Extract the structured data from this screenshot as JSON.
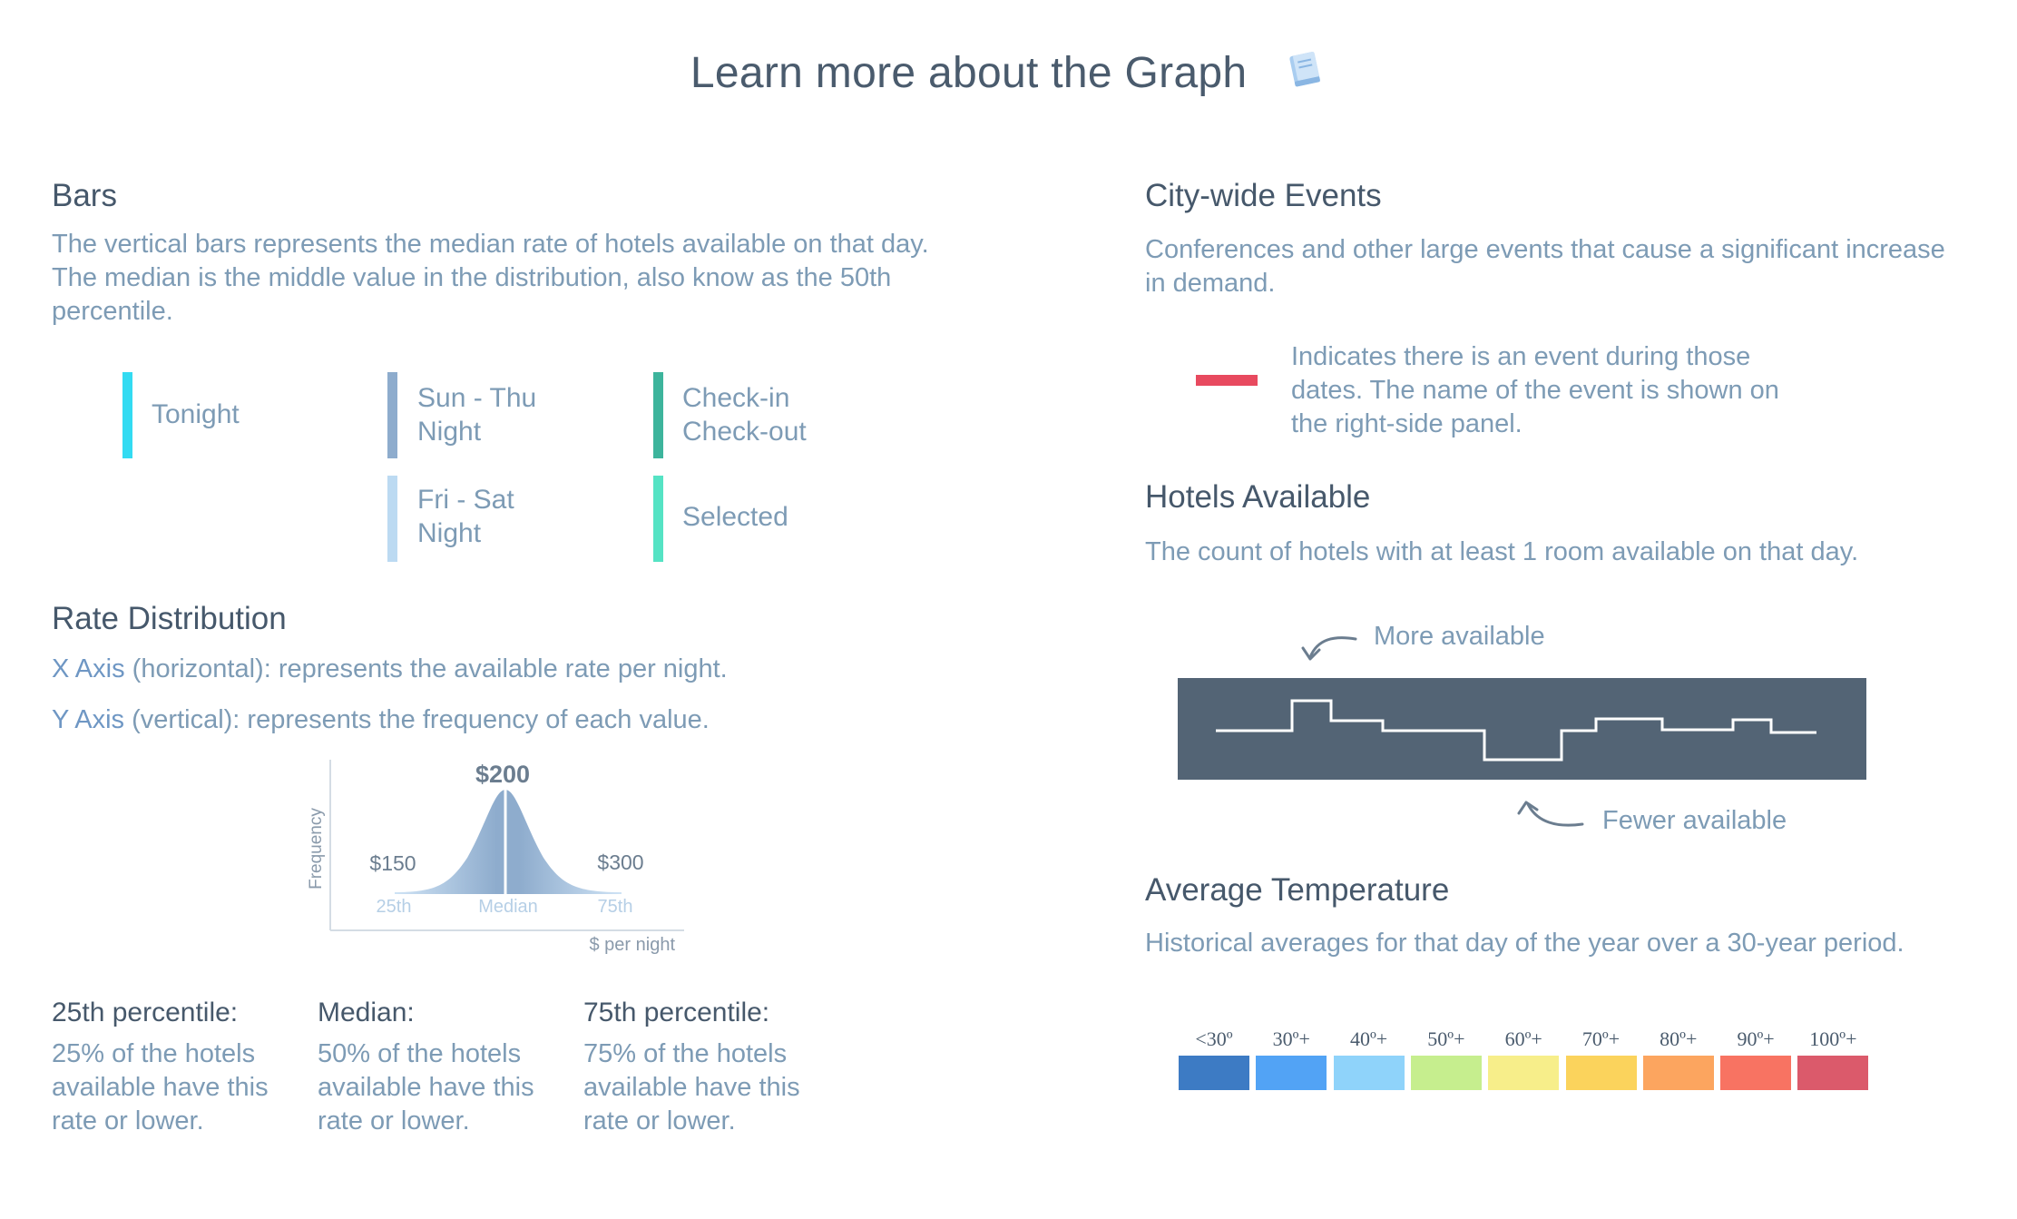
{
  "page": {
    "title": "Learn more about the Graph"
  },
  "bars": {
    "heading": "Bars",
    "description": "The vertical bars represents the median rate of hotels available on that day. The median is the middle value in the distribution, also know as the 50th percentile.",
    "legend": [
      {
        "label": "Tonight",
        "color": "#33dbf2"
      },
      {
        "label": "Sun - Thu Night",
        "color": "#8eaccd"
      },
      {
        "label": "Check-in Check-out",
        "color": "#3db49c"
      },
      {
        "label": "Fri - Sat Night",
        "color": "#bcdaf2"
      },
      {
        "label": "Selected",
        "color": "#55e3c4"
      }
    ]
  },
  "rate_distribution": {
    "heading": "Rate Distribution",
    "x_axis_term": "X Axis",
    "x_axis_desc": "(horizontal): represents the available rate per night.",
    "y_axis_term": "Y Axis",
    "y_axis_desc": "(vertical): represents the frequency of each value.",
    "chart": {
      "y_label": "Frequency",
      "x_label": "$ per night",
      "median_value": "$200",
      "p25_value": "$150",
      "p75_value": "$300",
      "p25_label": "25th",
      "median_label": "Median",
      "p75_label": "75th"
    },
    "percentiles": [
      {
        "title": "25th percentile:",
        "desc": "25% of the hotels available have this rate or lower."
      },
      {
        "title": "Median:",
        "desc": "50% of the hotels available have this rate or lower."
      },
      {
        "title": "75th percentile:",
        "desc": "75% of the hotels available have this rate or lower."
      }
    ]
  },
  "city_events": {
    "heading": "City-wide Events",
    "description": "Conferences and other large events that cause a significant increase in demand.",
    "indicator_text": "Indicates there is an event during those dates. The name of the event is shown on the right-side panel.",
    "indicator_color": "#e84a5f"
  },
  "hotels_available": {
    "heading": "Hotels Available",
    "description": "The count of hotels with at least 1 room available on that day.",
    "more_label": "More available",
    "fewer_label": "Fewer available",
    "panel_color": "#536475"
  },
  "avg_temperature": {
    "heading": "Average Temperature",
    "description": "Historical averages for that day of the year over a 30-year period.",
    "scale": [
      {
        "label": "<30º",
        "color": "#3d7bc4"
      },
      {
        "label": "30º+",
        "color": "#52a3f5"
      },
      {
        "label": "40º+",
        "color": "#8fd3fa"
      },
      {
        "label": "50º+",
        "color": "#c6ee8e"
      },
      {
        "label": "60º+",
        "color": "#f7ee8a"
      },
      {
        "label": "70º+",
        "color": "#fbd35c"
      },
      {
        "label": "80º+",
        "color": "#fca55f"
      },
      {
        "label": "90º+",
        "color": "#f87362"
      },
      {
        "label": "100º+",
        "color": "#db5a6b"
      }
    ]
  }
}
